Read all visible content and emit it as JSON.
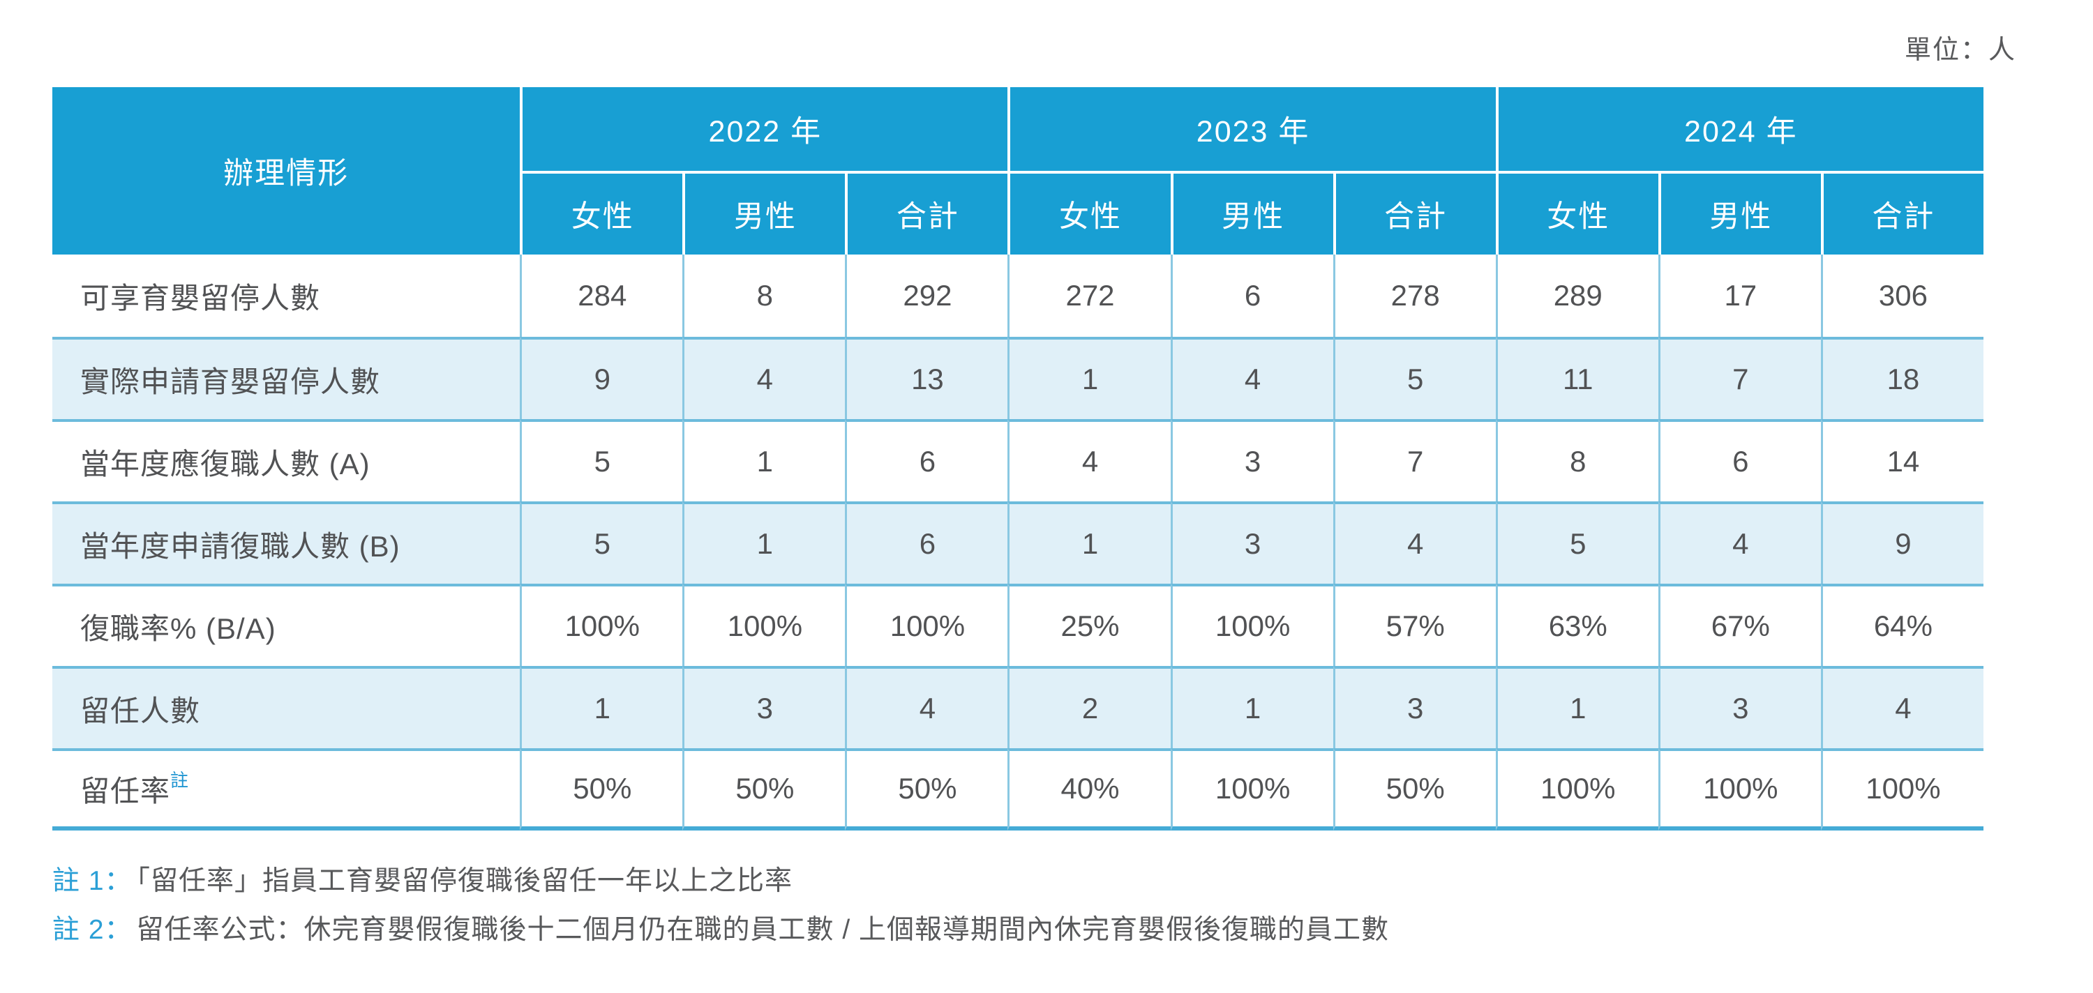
{
  "unit_label": "單位：人",
  "table": {
    "corner_header": "辦理情形",
    "years": [
      "2022 年",
      "2023 年",
      "2024 年"
    ],
    "sub_headers": [
      "女性",
      "男性",
      "合計"
    ],
    "rows": [
      {
        "label": "可享育嬰留停人數",
        "values": [
          "284",
          "8",
          "292",
          "272",
          "6",
          "278",
          "289",
          "17",
          "306"
        ]
      },
      {
        "label": "實際申請育嬰留停人數",
        "values": [
          "9",
          "4",
          "13",
          "1",
          "4",
          "5",
          "11",
          "7",
          "18"
        ]
      },
      {
        "label": "當年度應復職人數 (A)",
        "values": [
          "5",
          "1",
          "6",
          "4",
          "3",
          "7",
          "8",
          "6",
          "14"
        ]
      },
      {
        "label": "當年度申請復職人數 (B)",
        "values": [
          "5",
          "1",
          "6",
          "1",
          "3",
          "4",
          "5",
          "4",
          "9"
        ]
      },
      {
        "label": "復職率% (B/A)",
        "values": [
          "100%",
          "100%",
          "100%",
          "25%",
          "100%",
          "57%",
          "63%",
          "67%",
          "64%"
        ]
      },
      {
        "label": "留任人數",
        "values": [
          "1",
          "3",
          "4",
          "2",
          "1",
          "3",
          "1",
          "3",
          "4"
        ]
      },
      {
        "label": "留任率",
        "label_note": "註",
        "values": [
          "50%",
          "50%",
          "50%",
          "40%",
          "100%",
          "50%",
          "100%",
          "100%",
          "100%"
        ]
      }
    ]
  },
  "footnotes": [
    {
      "prefix": "註 1：",
      "text": "「留任率」指員工育嬰留停復職後留任一年以上之比率"
    },
    {
      "prefix": "註 2：",
      "text": "留任率公式：休完育嬰假復職後十二個月仍在職的員工數 / 上個報導期間內休完育嬰假後復職的員工數"
    }
  ],
  "colors": {
    "header_bg": "#189FD3",
    "stripe_bg": "#E0F0F8",
    "row_border": "#6CBBDC",
    "column_border": "#8AC8E2",
    "bottom_border": "#45ABD6",
    "text": "#515254",
    "accent_blue": "#2B9FD6"
  }
}
